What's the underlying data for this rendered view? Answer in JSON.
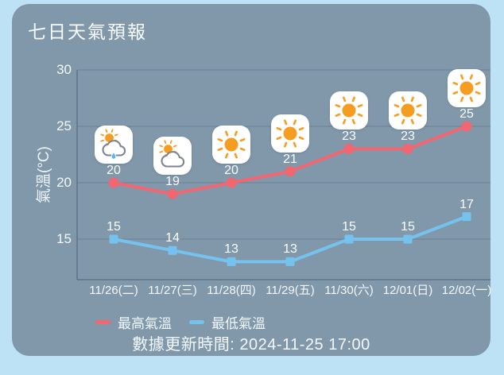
{
  "card": {
    "title": "七日天氣預報"
  },
  "legend": {
    "high_label": "最高氣溫",
    "low_label": "最低氣溫"
  },
  "footer": {
    "update_time": "數據更新時間: 2024-11-25 17:00"
  },
  "colors": {
    "page_bg": "#bde2f6",
    "card_bg": "#8198ab",
    "text": "#f2f8fc",
    "high_series": "#f16670",
    "low_series": "#75c2ef",
    "grid_line": "rgba(47,72,96,0.28)",
    "axis_line": "rgba(47,72,96,0.45)",
    "icon_bg": "#ffffff",
    "sun": "#f59d20",
    "cloud_outline": "#7d838d",
    "rain_drop": "#4db8f5"
  },
  "chart_data": {
    "type": "line",
    "title": "七日天氣預報",
    "xlabel": "",
    "ylabel": "氣溫(°C)",
    "x": [
      "11/26(二)",
      "11/27(三)",
      "11/28(四)",
      "11/29(五)",
      "11/30(六)",
      "12/01(日)",
      "12/02(一)"
    ],
    "series": [
      {
        "name": "最高氣溫",
        "color": "#f16670",
        "marker": "circle",
        "values": [
          20,
          19,
          20,
          21,
          23,
          23,
          25
        ]
      },
      {
        "name": "最低氣溫",
        "color": "#75c2ef",
        "marker": "square",
        "values": [
          15,
          14,
          13,
          13,
          15,
          15,
          17
        ]
      }
    ],
    "weather_icons": [
      "cloud-sun-rain",
      "cloud-sun",
      "sunny",
      "sunny",
      "sunny",
      "sunny",
      "sunny"
    ],
    "yticks": [
      30,
      25,
      20,
      15
    ],
    "ylim": [
      11.5,
      30.5
    ],
    "grid": true,
    "legend_position": "bottom-left",
    "annotations": "data labels shown above each point"
  }
}
